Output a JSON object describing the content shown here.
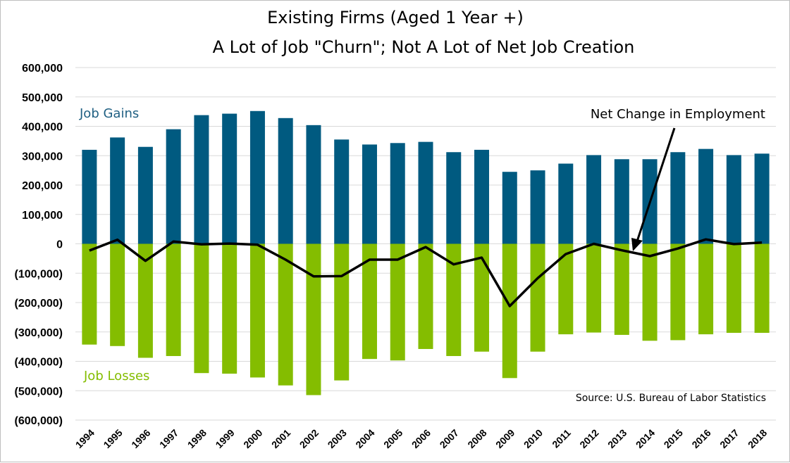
{
  "chart_data": {
    "type": "bar",
    "title": [
      "Existing Firms (Aged 1 Year +)",
      "A Lot of Job \"Churn\"; Not A Lot of Net Job Creation"
    ],
    "xlabel": "",
    "ylabel": "",
    "ylim": [
      -600000,
      600000
    ],
    "yticks": [
      600000,
      500000,
      400000,
      300000,
      200000,
      100000,
      0,
      -100000,
      -200000,
      -300000,
      -400000,
      -500000,
      -600000
    ],
    "ytick_labels": [
      "600,000",
      "500,000",
      "400,000",
      "300,000",
      "200,000",
      "100,000",
      "0",
      "(100,000)",
      "(200,000)",
      "(300,000)",
      "(400,000)",
      "(500,000)",
      "(600,000)"
    ],
    "categories": [
      "1994",
      "1995",
      "1996",
      "1997",
      "1998",
      "1999",
      "2000",
      "2001",
      "2002",
      "2003",
      "2004",
      "2005",
      "2006",
      "2007",
      "2008",
      "2009",
      "2010",
      "2011",
      "2012",
      "2013",
      "2014",
      "2015",
      "2016",
      "2017",
      "2018"
    ],
    "series": [
      {
        "name": "Job Gains",
        "kind": "bar",
        "color": "#005a80",
        "values": [
          320000,
          362000,
          330000,
          390000,
          438000,
          443000,
          452000,
          428000,
          404000,
          355000,
          338000,
          343000,
          347000,
          312000,
          320000,
          245000,
          250000,
          273000,
          302000,
          288000,
          288000,
          312000,
          323000,
          302000,
          307000
        ]
      },
      {
        "name": "Job Losses",
        "kind": "bar",
        "color": "#84bd00",
        "values": [
          -343000,
          -348000,
          -388000,
          -382000,
          -440000,
          -442000,
          -455000,
          -482000,
          -515000,
          -465000,
          -392000,
          -397000,
          -358000,
          -382000,
          -367000,
          -457000,
          -367000,
          -308000,
          -302000,
          -310000,
          -330000,
          -328000,
          -308000,
          -303000,
          -303000
        ]
      },
      {
        "name": "Net Change in Employment",
        "kind": "line",
        "color": "#000000",
        "values": [
          -23000,
          14000,
          -58000,
          8000,
          -2000,
          1000,
          -3000,
          -54000,
          -111000,
          -110000,
          -54000,
          -54000,
          -11000,
          -70000,
          -47000,
          -212000,
          -117000,
          -35000,
          0,
          -22000,
          -42000,
          -16000,
          15000,
          -1000,
          4000
        ]
      }
    ],
    "annotations": {
      "gains_label": "Job Gains",
      "losses_label": "Job Losses",
      "net_label": "Net Change in Employment",
      "source": "Source: U.S. Bureau of Labor Statistics"
    },
    "grid": true,
    "legend": "inline labels"
  },
  "colors": {
    "gains": "#005a80",
    "losses": "#84bd00",
    "net": "#000000",
    "gains_text": "#1f5f82",
    "losses_text": "#84bd00",
    "grid": "#d9d9d9"
  }
}
